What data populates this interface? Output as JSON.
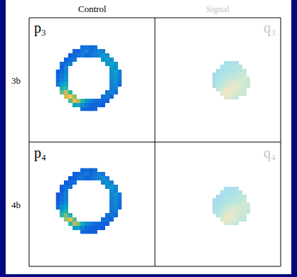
{
  "columns": [
    "Control",
    "Signal"
  ],
  "rows": [
    "3b",
    "4b"
  ],
  "chart_data": [
    {
      "type": "heatmap",
      "title": "p₃",
      "tick_labels": false,
      "xlim": [
        -0.5,
        15.5
      ],
      "ylim": [
        15.5,
        -0.5
      ],
      "zlim": [
        0,
        1
      ],
      "cells": [
        [
          null,
          null,
          null,
          null,
          null,
          null,
          0.22,
          0.25,
          0.2,
          0.24,
          null,
          null,
          null,
          null,
          null,
          null
        ],
        [
          null,
          null,
          null,
          null,
          0.2,
          0.18,
          0.26,
          0.3,
          0.22,
          0.28,
          0.35,
          0.3,
          null,
          null,
          null,
          null
        ],
        [
          null,
          null,
          null,
          0.16,
          0.2,
          0.24,
          0.28,
          0.2,
          0.25,
          0.3,
          0.33,
          0.4,
          0.35,
          null,
          null,
          null
        ],
        [
          null,
          null,
          0.18,
          0.22,
          0.25,
          null,
          null,
          null,
          null,
          null,
          null,
          0.38,
          0.42,
          0.36,
          null,
          null
        ],
        [
          null,
          0.2,
          0.24,
          0.28,
          null,
          null,
          null,
          null,
          null,
          null,
          null,
          null,
          0.4,
          0.45,
          0.38,
          null
        ],
        [
          null,
          0.18,
          0.3,
          null,
          null,
          null,
          null,
          null,
          null,
          null,
          null,
          null,
          null,
          0.42,
          0.36,
          null
        ],
        [
          0.15,
          0.22,
          0.3,
          null,
          null,
          null,
          null,
          null,
          null,
          null,
          null,
          null,
          null,
          0.38,
          0.44,
          0.3
        ],
        [
          0.18,
          0.25,
          0.35,
          null,
          null,
          null,
          null,
          null,
          null,
          null,
          null,
          null,
          null,
          0.35,
          0.4,
          0.28
        ],
        [
          0.2,
          0.3,
          0.4,
          null,
          null,
          null,
          null,
          null,
          null,
          null,
          null,
          null,
          null,
          0.32,
          0.38,
          0.25
        ],
        [
          0.25,
          0.42,
          0.5,
          null,
          null,
          null,
          null,
          null,
          null,
          null,
          null,
          null,
          null,
          0.3,
          0.35,
          0.22
        ],
        [
          null,
          0.55,
          0.62,
          null,
          null,
          null,
          null,
          null,
          null,
          null,
          null,
          null,
          null,
          0.28,
          0.3,
          null
        ],
        [
          null,
          0.7,
          0.82,
          0.6,
          null,
          null,
          null,
          null,
          null,
          null,
          null,
          null,
          0.25,
          0.3,
          0.22,
          null
        ],
        [
          null,
          null,
          0.85,
          0.92,
          0.75,
          null,
          null,
          null,
          null,
          null,
          null,
          0.24,
          0.26,
          0.2,
          null,
          null
        ],
        [
          null,
          null,
          null,
          0.65,
          0.88,
          0.8,
          0.6,
          0.4,
          0.3,
          0.25,
          0.22,
          0.2,
          0.18,
          null,
          null,
          null
        ],
        [
          null,
          null,
          null,
          null,
          0.45,
          0.5,
          0.35,
          0.25,
          0.2,
          0.18,
          0.2,
          0.16,
          null,
          null,
          null,
          null
        ],
        [
          null,
          null,
          null,
          null,
          null,
          null,
          0.22,
          0.2,
          0.18,
          0.2,
          null,
          null,
          null,
          null,
          null,
          null
        ]
      ]
    },
    {
      "type": "heatmap",
      "title": "q₃",
      "tick_labels": false,
      "xlim": [
        -0.5,
        9.5
      ],
      "ylim": [
        9.5,
        -0.5
      ],
      "zlim": [
        0,
        1
      ],
      "cells": [
        [
          null,
          null,
          null,
          0.45,
          0.48,
          0.5,
          0.52,
          null,
          null,
          null
        ],
        [
          null,
          null,
          0.45,
          0.48,
          0.5,
          0.53,
          0.55,
          0.58,
          null,
          null
        ],
        [
          null,
          0.42,
          0.46,
          0.5,
          0.53,
          0.56,
          0.6,
          0.62,
          0.65,
          null
        ],
        [
          0.4,
          0.45,
          0.5,
          0.55,
          0.58,
          0.62,
          0.65,
          0.68,
          0.7,
          null
        ],
        [
          0.42,
          0.48,
          0.55,
          0.6,
          0.65,
          0.68,
          0.7,
          0.72,
          0.75,
          0.72
        ],
        [
          0.45,
          0.52,
          0.6,
          0.68,
          0.72,
          0.75,
          0.78,
          0.75,
          0.72,
          0.7
        ],
        [
          0.5,
          0.58,
          0.68,
          0.75,
          0.8,
          0.82,
          0.8,
          0.76,
          0.72,
          0.68
        ],
        [
          null,
          0.65,
          0.75,
          0.82,
          0.85,
          0.82,
          0.78,
          0.74,
          0.7,
          null
        ],
        [
          null,
          null,
          0.8,
          0.85,
          0.82,
          0.78,
          0.74,
          0.7,
          0.66,
          null
        ],
        [
          null,
          null,
          null,
          0.8,
          0.76,
          0.72,
          0.68,
          null,
          null,
          null
        ]
      ]
    },
    {
      "type": "heatmap",
      "title": "p₄",
      "tick_labels": false,
      "xlim": [
        -0.5,
        15.5
      ],
      "ylim": [
        15.5,
        -0.5
      ],
      "zlim": [
        0,
        1
      ],
      "cells": [
        [
          null,
          null,
          null,
          null,
          null,
          null,
          0.2,
          0.22,
          0.18,
          0.22,
          null,
          null,
          null,
          null,
          null,
          null
        ],
        [
          null,
          null,
          null,
          null,
          0.18,
          0.2,
          0.24,
          0.26,
          0.2,
          0.25,
          0.3,
          0.26,
          null,
          null,
          null,
          null
        ],
        [
          null,
          null,
          null,
          0.15,
          0.18,
          0.22,
          0.25,
          0.18,
          0.22,
          0.28,
          0.3,
          0.35,
          0.3,
          null,
          null,
          null
        ],
        [
          null,
          null,
          0.16,
          0.2,
          0.22,
          null,
          null,
          null,
          null,
          null,
          null,
          0.32,
          0.36,
          0.3,
          null,
          null
        ],
        [
          null,
          0.18,
          0.22,
          0.25,
          null,
          null,
          null,
          null,
          null,
          null,
          null,
          null,
          0.35,
          0.4,
          0.32,
          null
        ],
        [
          null,
          0.16,
          0.26,
          null,
          null,
          null,
          null,
          null,
          null,
          null,
          null,
          null,
          null,
          0.36,
          0.3,
          null
        ],
        [
          0.14,
          0.2,
          0.28,
          null,
          null,
          null,
          null,
          null,
          null,
          null,
          null,
          null,
          null,
          0.32,
          0.38,
          0.26
        ],
        [
          0.16,
          0.22,
          0.3,
          null,
          null,
          null,
          null,
          null,
          null,
          null,
          null,
          null,
          null,
          0.3,
          0.34,
          0.24
        ],
        [
          0.18,
          0.26,
          0.35,
          null,
          null,
          null,
          null,
          null,
          null,
          null,
          null,
          null,
          null,
          0.28,
          0.32,
          0.22
        ],
        [
          0.22,
          0.36,
          0.45,
          null,
          null,
          null,
          null,
          null,
          null,
          null,
          null,
          null,
          null,
          0.26,
          0.3,
          0.2
        ],
        [
          null,
          0.48,
          0.55,
          null,
          null,
          null,
          null,
          null,
          null,
          null,
          null,
          null,
          null,
          0.24,
          0.26,
          null
        ],
        [
          null,
          0.6,
          0.72,
          0.55,
          null,
          null,
          null,
          null,
          null,
          null,
          null,
          null,
          0.22,
          0.26,
          0.2,
          null
        ],
        [
          null,
          null,
          0.78,
          0.86,
          0.68,
          null,
          null,
          null,
          null,
          null,
          null,
          0.22,
          0.24,
          0.18,
          null,
          null
        ],
        [
          null,
          null,
          null,
          0.6,
          0.82,
          0.72,
          0.5,
          0.35,
          0.28,
          0.22,
          0.2,
          0.18,
          0.16,
          null,
          null,
          null
        ],
        [
          null,
          null,
          null,
          null,
          0.4,
          0.45,
          0.3,
          0.22,
          0.18,
          0.16,
          0.18,
          0.15,
          null,
          null,
          null,
          null
        ],
        [
          null,
          null,
          null,
          null,
          null,
          null,
          0.2,
          0.18,
          0.16,
          0.18,
          null,
          null,
          null,
          null,
          null,
          null
        ]
      ]
    },
    {
      "type": "heatmap",
      "title": "q₄",
      "tick_labels": false,
      "xlim": [
        -0.5,
        9.5
      ],
      "ylim": [
        9.5,
        -0.5
      ],
      "zlim": [
        0,
        1
      ],
      "cells": [
        [
          null,
          null,
          null,
          0.42,
          0.45,
          0.48,
          0.5,
          null,
          null,
          null
        ],
        [
          null,
          null,
          0.42,
          0.45,
          0.48,
          0.5,
          0.53,
          0.55,
          null,
          null
        ],
        [
          null,
          0.4,
          0.44,
          0.48,
          0.5,
          0.54,
          0.58,
          0.6,
          0.62,
          null
        ],
        [
          0.38,
          0.42,
          0.47,
          0.52,
          0.56,
          0.6,
          0.63,
          0.66,
          0.68,
          null
        ],
        [
          0.4,
          0.45,
          0.52,
          0.58,
          0.62,
          0.66,
          0.68,
          0.7,
          0.72,
          0.7
        ],
        [
          0.43,
          0.5,
          0.58,
          0.65,
          0.7,
          0.73,
          0.76,
          0.74,
          0.7,
          0.68
        ],
        [
          0.48,
          0.56,
          0.65,
          0.72,
          0.78,
          0.8,
          0.78,
          0.74,
          0.7,
          0.66
        ],
        [
          null,
          0.62,
          0.72,
          0.8,
          0.83,
          0.8,
          0.76,
          0.72,
          0.68,
          null
        ],
        [
          null,
          null,
          0.78,
          0.82,
          0.8,
          0.76,
          0.72,
          0.68,
          0.64,
          null
        ],
        [
          null,
          null,
          null,
          0.78,
          0.74,
          0.7,
          0.66,
          null,
          null,
          null
        ]
      ]
    }
  ]
}
